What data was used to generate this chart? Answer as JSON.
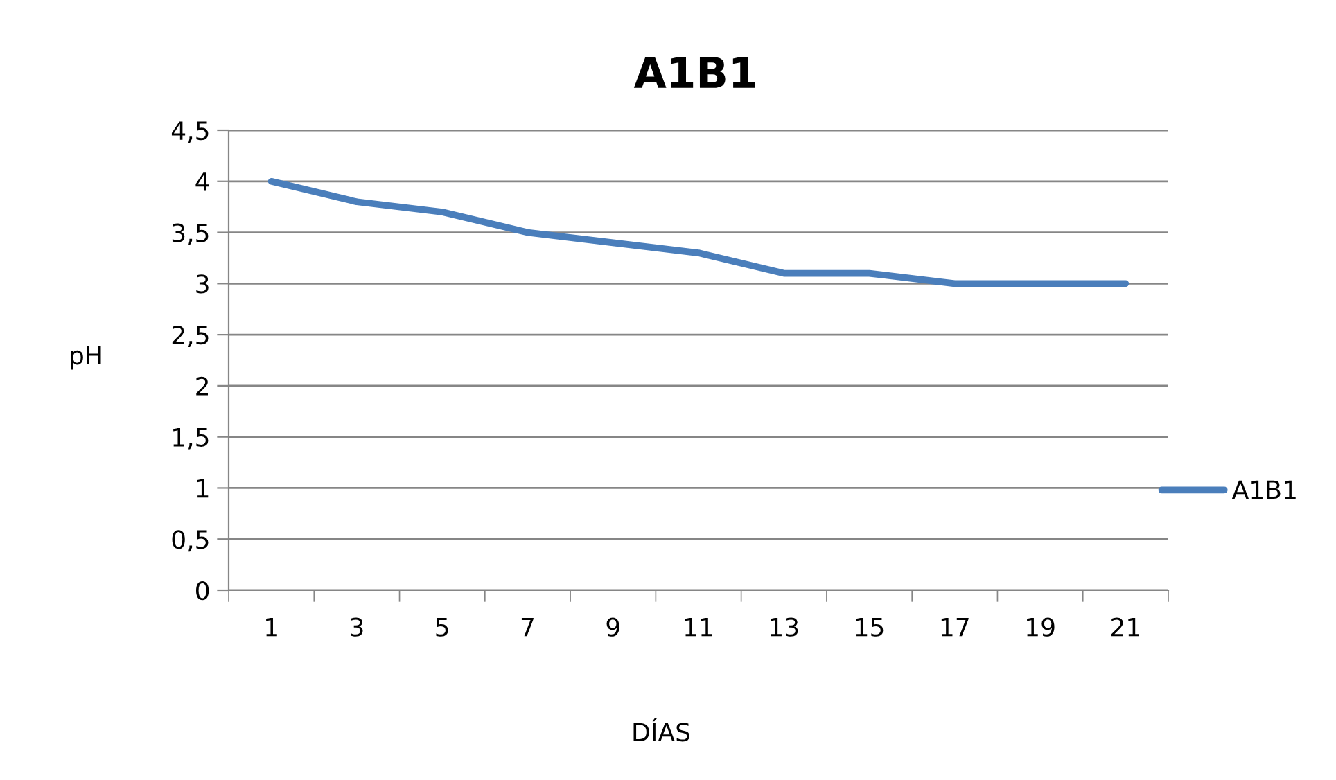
{
  "chart_data": {
    "type": "line",
    "title": "A1B1",
    "xlabel": "DÍAS",
    "ylabel": "pH",
    "categories": [
      "1",
      "3",
      "5",
      "7",
      "9",
      "11",
      "13",
      "15",
      "17",
      "19",
      "21"
    ],
    "series": [
      {
        "name": "A1B1",
        "color": "#4a7ebb",
        "values": [
          4.0,
          3.8,
          3.7,
          3.5,
          3.4,
          3.3,
          3.1,
          3.1,
          3.0,
          3.0,
          3.0
        ]
      }
    ],
    "ylim": [
      0,
      4.5
    ],
    "yticks": [
      0,
      {
        "value": 0.5,
        "label": "0,5"
      },
      1,
      {
        "value": 1.5,
        "label": "1,5"
      },
      2,
      {
        "value": 2.5,
        "label": "2,5"
      },
      3,
      {
        "value": 3.5,
        "label": "3,5"
      },
      4,
      {
        "value": 4.5,
        "label": "4,5"
      }
    ],
    "grid": "y",
    "legend": "right",
    "marker": "none",
    "line_style": "solid"
  }
}
